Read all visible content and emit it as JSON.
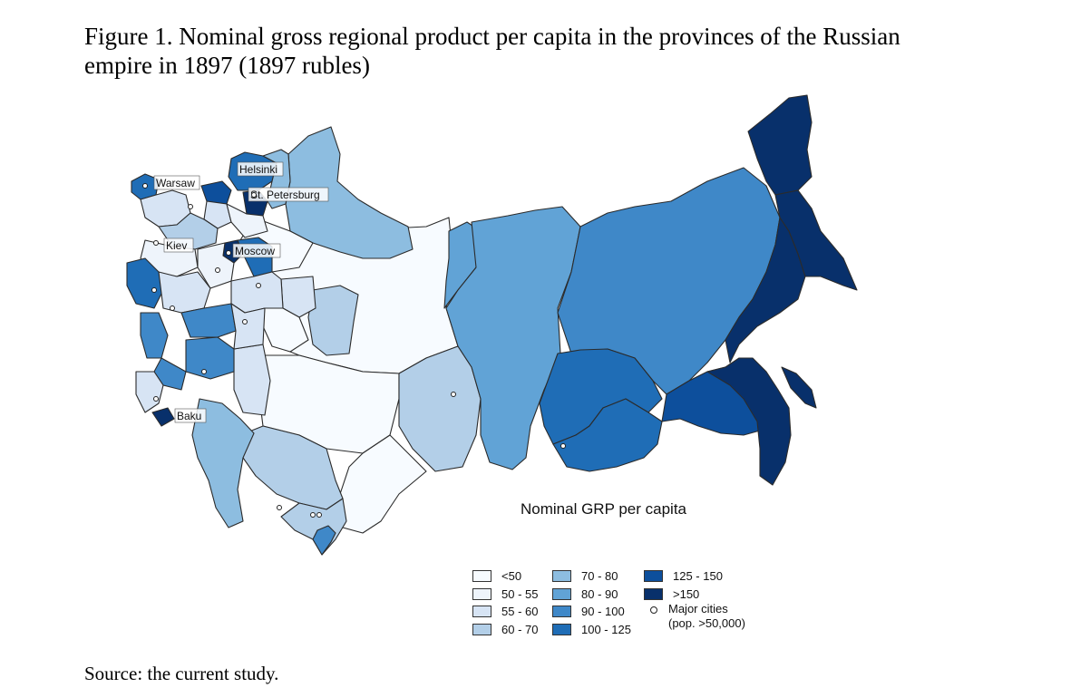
{
  "caption": {
    "line1": "Figure 1. Nominal gross regional product per capita in the provinces of the Russian",
    "line2": "empire in 1897 (1897 rubles)"
  },
  "source": "Source: the current study.",
  "legend": {
    "title": "Nominal GRP per capita",
    "classes": [
      {
        "label": "<50",
        "color": "#f7fbff"
      },
      {
        "label": "50 - 55",
        "color": "#eef4fb"
      },
      {
        "label": "55 - 60",
        "color": "#d7e4f4"
      },
      {
        "label": "60 - 70",
        "color": "#b3cfe8"
      },
      {
        "label": "70 - 80",
        "color": "#8dbde0"
      },
      {
        "label": "80 - 90",
        "color": "#61a3d6"
      },
      {
        "label": "90 - 100",
        "color": "#3f88c8"
      },
      {
        "label": "100 - 125",
        "color": "#1f6db6"
      },
      {
        "label": "125 - 150",
        "color": "#0d4f9c"
      },
      {
        "label": ">150",
        "color": "#08306b"
      }
    ],
    "cities_line1": "Major cities",
    "cities_line2": "(pop. >50,000)"
  },
  "cities": {
    "helsinki": "Helsinki",
    "warsaw": "Warsaw",
    "st_petersburg": "St. Petersburg",
    "kiev": "Kiev",
    "moscow": "Moscow",
    "baku": "Baku"
  }
}
